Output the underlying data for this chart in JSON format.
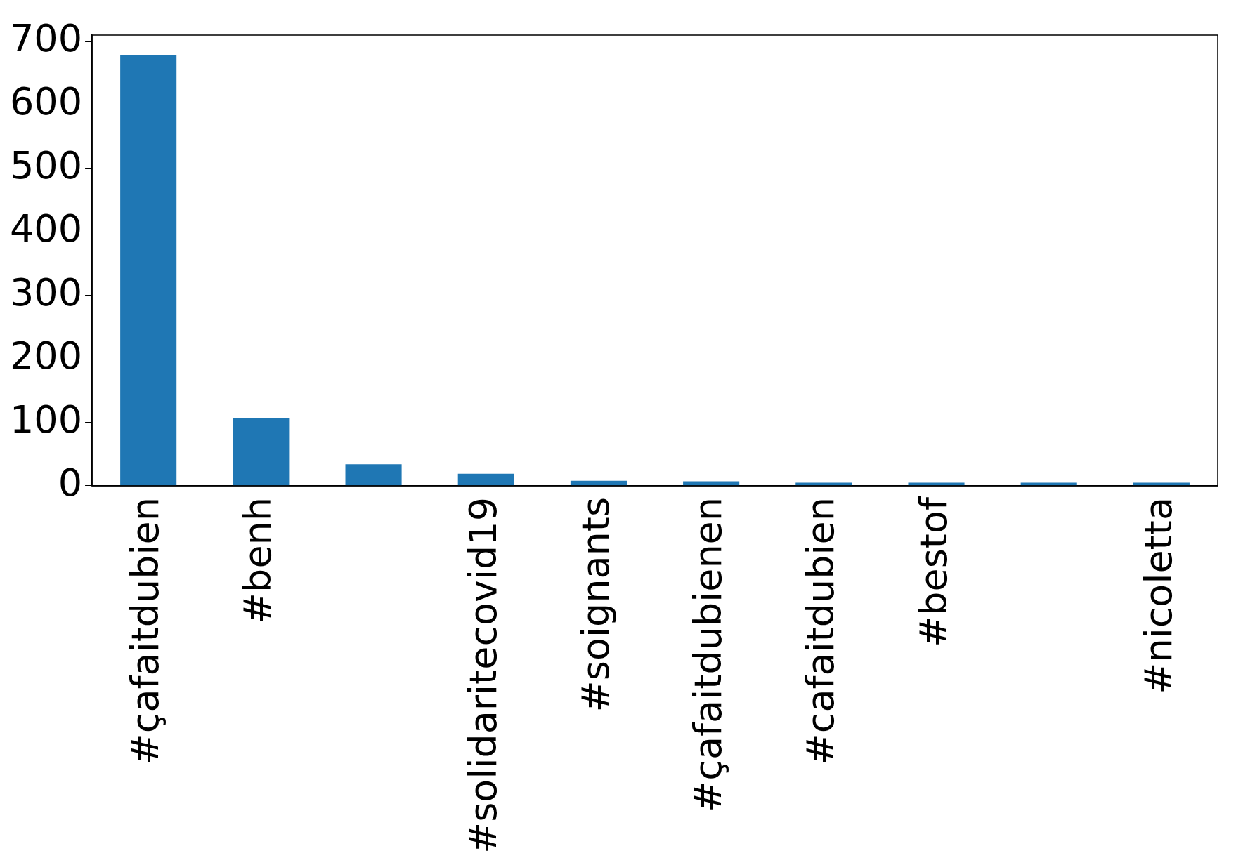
{
  "chart_data": {
    "type": "bar",
    "categories": [
      "#çafaitdubien",
      "#benh",
      null,
      "#solidaritecovid19",
      "#soignants",
      "#çafaitdubienen",
      "#cafaitdubien",
      "#bestof",
      null,
      "#nicoletta"
    ],
    "values": [
      679,
      107,
      34,
      19,
      8,
      7,
      5,
      5,
      5,
      5
    ],
    "color": "#1f77b4",
    "ylim": [
      0,
      710
    ],
    "yticks": [
      0,
      100,
      200,
      300,
      400,
      500,
      600,
      700
    ],
    "grid": false,
    "legend": false
  }
}
